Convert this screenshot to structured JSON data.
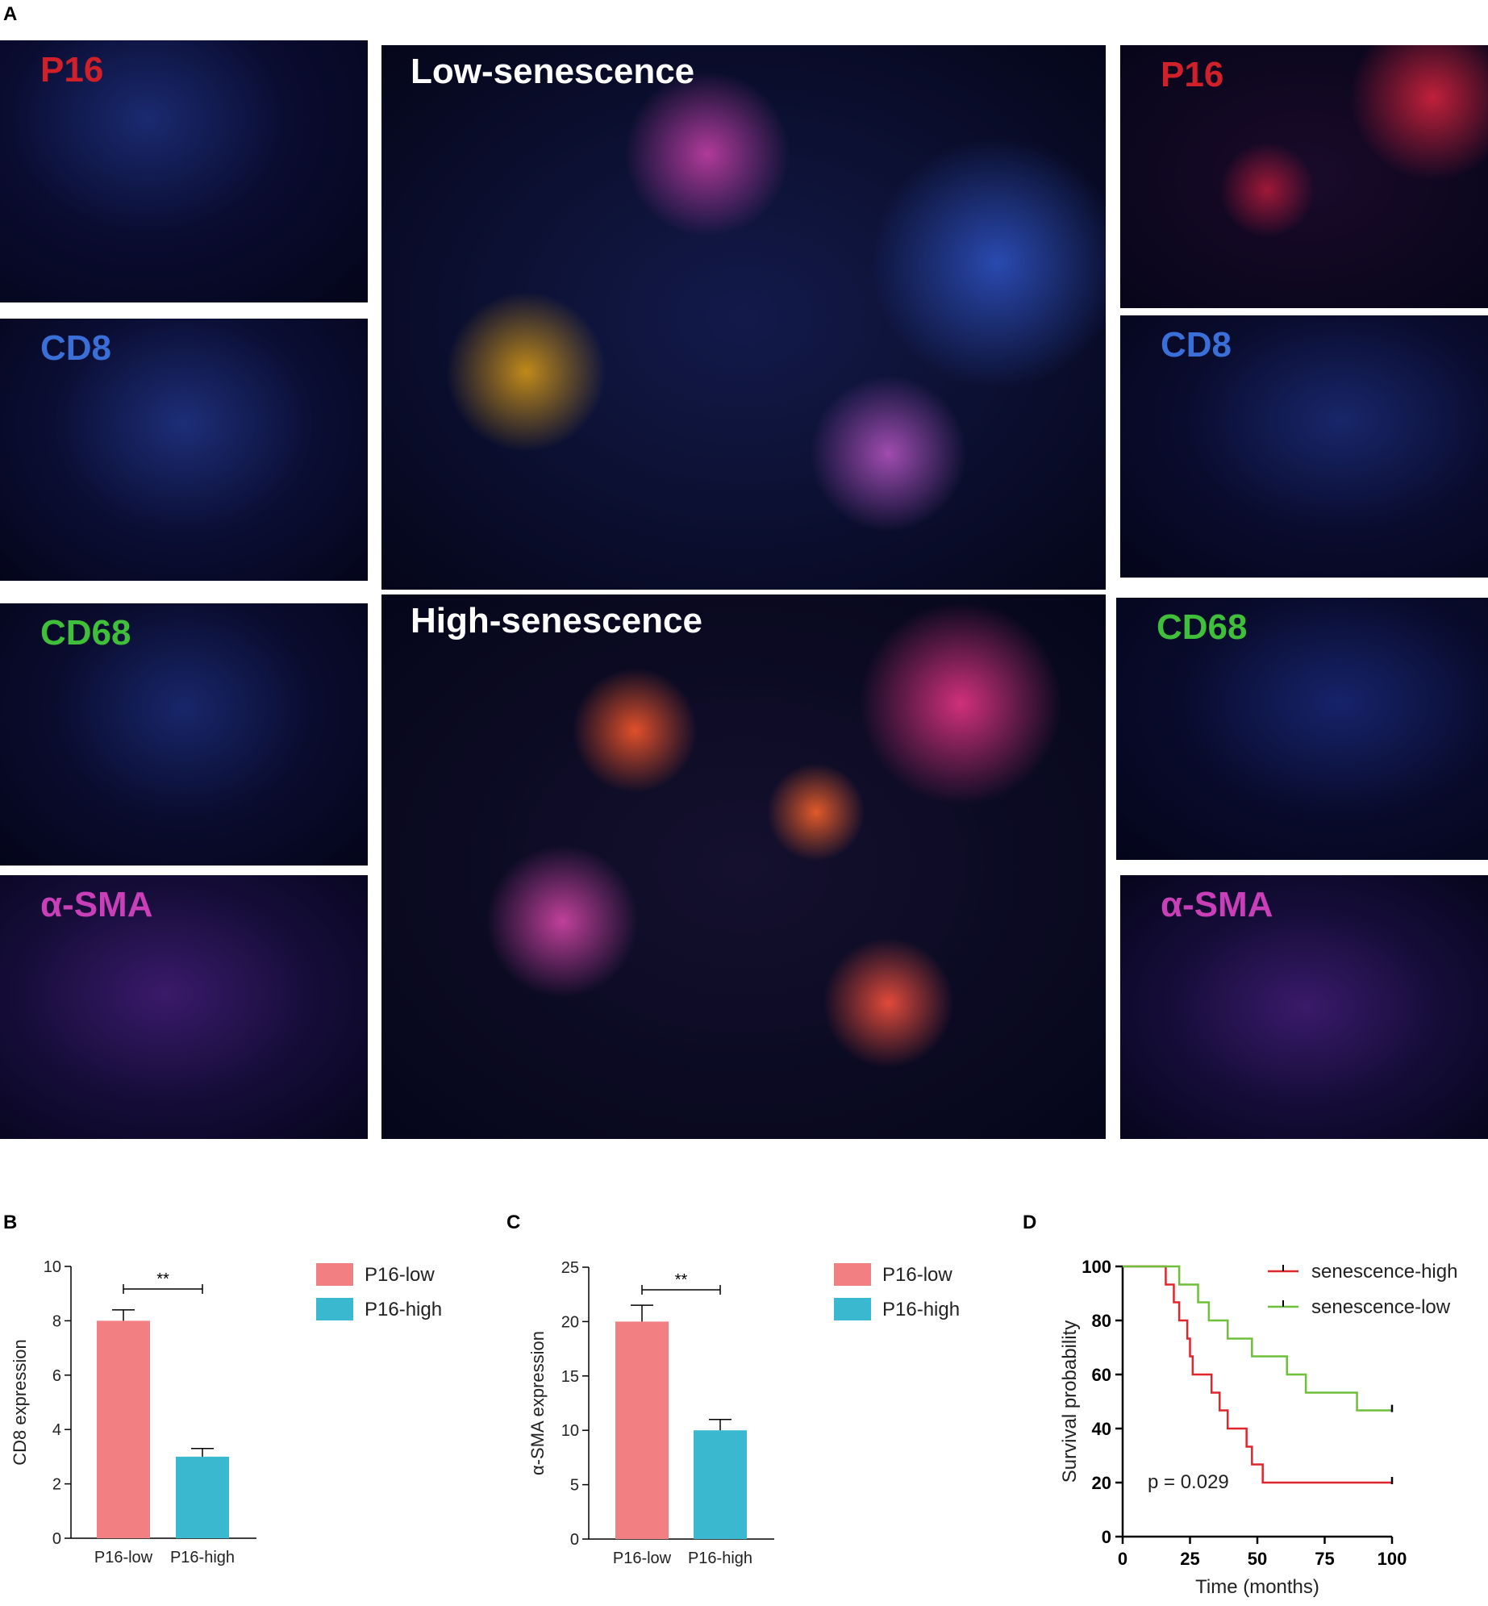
{
  "panel_letters": {
    "a": "A",
    "b": "B",
    "c": "C",
    "d": "D"
  },
  "panel_a": {
    "left_labels": [
      {
        "text": "P16",
        "color": "#d0202a"
      },
      {
        "text": "CD8",
        "color": "#3a6fd8"
      },
      {
        "text": "CD68",
        "color": "#3fbf3a"
      },
      {
        "text": "α-SMA",
        "color": "#c93fb8"
      }
    ],
    "right_labels": [
      {
        "text": "P16",
        "color": "#d0202a"
      },
      {
        "text": "CD8",
        "color": "#3a6fd8"
      },
      {
        "text": "CD68",
        "color": "#3fbf3a"
      },
      {
        "text": "α-SMA",
        "color": "#c93fb8"
      }
    ],
    "center_top_label": "Low-senescence",
    "center_bottom_label": "High-senescence"
  },
  "chart_data": [
    {
      "type": "bar",
      "panel": "B",
      "categories": [
        "P16-low",
        "P16-high"
      ],
      "values": [
        8,
        3
      ],
      "error": [
        0.4,
        0.3
      ],
      "colors": [
        "#f27f82",
        "#3ab8cf"
      ],
      "ylabel": "CD8 expression",
      "ylim": [
        0,
        10
      ],
      "yticks": [
        "0",
        "2",
        "4",
        "6",
        "8",
        "10"
      ],
      "significance": "**",
      "legend": [
        "P16-low",
        "P16-high"
      ],
      "legend_position": "right"
    },
    {
      "type": "bar",
      "panel": "C",
      "categories": [
        "P16-low",
        "P16-high"
      ],
      "values": [
        20,
        10
      ],
      "error": [
        1.5,
        1.0
      ],
      "colors": [
        "#f27f82",
        "#3ab8cf"
      ],
      "ylabel": "α-SMA expression",
      "ylim": [
        0,
        25
      ],
      "yticks": [
        "0",
        "5",
        "10",
        "15",
        "20",
        "25"
      ],
      "significance": "**",
      "legend": [
        "P16-low",
        "P16-high"
      ],
      "legend_position": "right"
    },
    {
      "type": "line",
      "panel": "D",
      "xlabel": "Time (months)",
      "ylabel": "Survival probability",
      "xlim": [
        0,
        100
      ],
      "ylim": [
        0,
        100
      ],
      "xticks": [
        "0",
        "25",
        "50",
        "75",
        "100"
      ],
      "yticks": [
        "0",
        "20",
        "40",
        "60",
        "80",
        "100"
      ],
      "annotation": "p = 0.029",
      "legend_position": "top-right",
      "series": [
        {
          "name": "senescence-high",
          "color": "#e0262b",
          "steps": [
            [
              0,
              100
            ],
            [
              16,
              93.3
            ],
            [
              19,
              86.7
            ],
            [
              21,
              80
            ],
            [
              24,
              73.3
            ],
            [
              25,
              66.7
            ],
            [
              26,
              60
            ],
            [
              33,
              53.3
            ],
            [
              36,
              46.7
            ],
            [
              39,
              40
            ],
            [
              46,
              33.3
            ],
            [
              48,
              26.7
            ],
            [
              52,
              20
            ],
            [
              100,
              20
            ]
          ]
        },
        {
          "name": "senescence-low",
          "color": "#6ebf3a",
          "steps": [
            [
              0,
              100
            ],
            [
              21,
              93.3
            ],
            [
              28,
              86.7
            ],
            [
              32,
              80
            ],
            [
              39,
              73.3
            ],
            [
              48,
              66.7
            ],
            [
              61,
              60
            ],
            [
              68,
              53.3
            ],
            [
              87,
              46.7
            ],
            [
              100,
              46.7
            ]
          ]
        }
      ]
    }
  ]
}
